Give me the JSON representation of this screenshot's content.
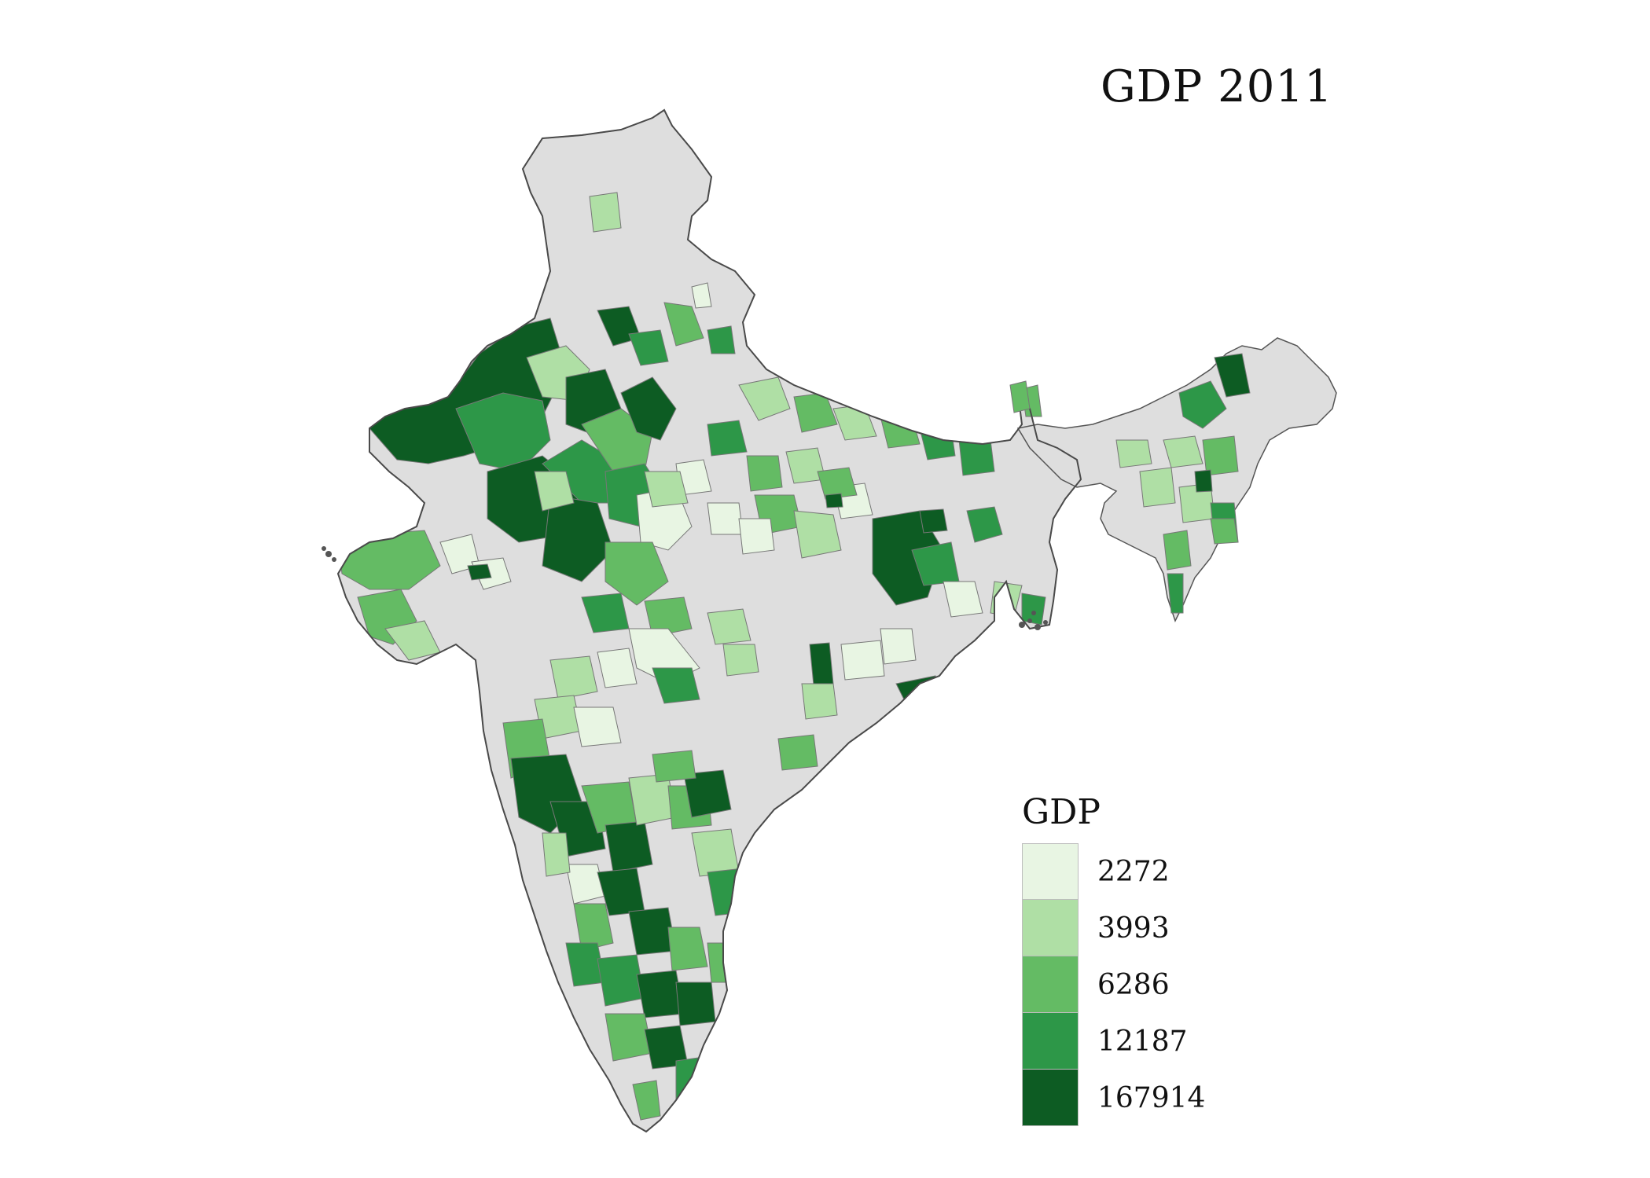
{
  "title": "GDP 2011",
  "legend": {
    "title": "GDP",
    "classes": [
      {
        "label": "2272",
        "color": "#e8f5e3"
      },
      {
        "label": "3993",
        "color": "#afdfa5"
      },
      {
        "label": "6286",
        "color": "#64bb64"
      },
      {
        "label": "12187",
        "color": "#2d9748"
      },
      {
        "label": "167914",
        "color": "#0d5c23"
      }
    ]
  },
  "colors": {
    "no_data": "#dedede",
    "border": "#6a6a6a"
  }
}
